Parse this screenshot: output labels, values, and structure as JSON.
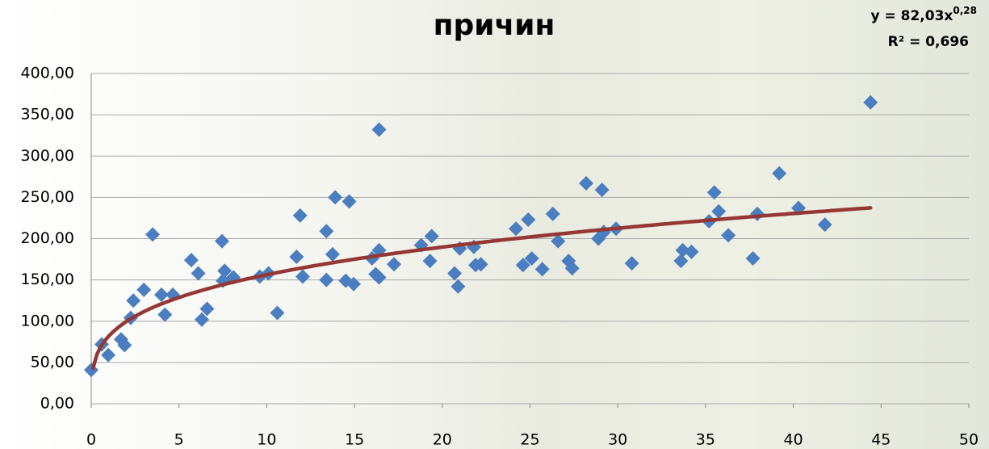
{
  "chart_data": {
    "type": "scatter",
    "title": "причин",
    "xlim": [
      0,
      50
    ],
    "xticks": [
      0,
      5,
      10,
      15,
      20,
      25,
      30,
      35,
      40,
      45,
      50
    ],
    "ylim": [
      0,
      400
    ],
    "yticks": [
      {
        "value": 0,
        "label": "0,00"
      },
      {
        "value": 50,
        "label": "50,00"
      },
      {
        "value": 100,
        "label": "100,00"
      },
      {
        "value": 150,
        "label": "150,00"
      },
      {
        "value": 200,
        "label": "200,00"
      },
      {
        "value": 250,
        "label": "250,00"
      },
      {
        "value": 300,
        "label": "300,00"
      },
      {
        "value": 350,
        "label": "350,00"
      },
      {
        "value": 400,
        "label": "400,00"
      }
    ],
    "grid": true,
    "series": [
      {
        "color": "#4a7ec0",
        "x": [
          0.0,
          0.6,
          0.97,
          1.7,
          1.9,
          2.25,
          2.4,
          3.0,
          3.5,
          4.0,
          4.2,
          4.65,
          5.7,
          6.1,
          6.3,
          6.6,
          7.45,
          7.6,
          7.5,
          8.1,
          9.6,
          10.1,
          10.6,
          11.7,
          11.9,
          12.05,
          13.4,
          13.4,
          13.75,
          13.9,
          14.5,
          14.7,
          14.95,
          16.0,
          16.2,
          16.4,
          16.4,
          16.4,
          17.25,
          18.8,
          19.4,
          19.3,
          20.7,
          20.9,
          21.0,
          21.8,
          21.9,
          22.2,
          24.2,
          24.6,
          24.9,
          25.1,
          25.7,
          26.3,
          26.6,
          27.2,
          27.4,
          28.2,
          28.9,
          29.1,
          29.2,
          29.9,
          30.8,
          33.6,
          33.7,
          34.2,
          35.2,
          35.5,
          35.75,
          36.3,
          37.7,
          37.95,
          39.2,
          40.3,
          41.8,
          44.4
        ],
        "values": [
          41,
          72,
          59,
          78,
          71,
          104,
          125,
          138,
          205,
          132,
          108,
          132,
          174,
          158,
          102,
          115,
          197,
          161,
          149,
          153,
          154,
          158,
          110,
          178,
          228,
          154,
          209,
          150,
          181,
          250,
          149,
          245,
          145,
          176,
          157,
          332,
          186,
          153,
          169,
          192,
          203,
          173,
          158,
          142,
          188,
          190,
          168,
          169,
          212,
          168,
          223,
          176,
          163,
          230,
          197,
          173,
          164,
          267,
          200,
          259,
          208,
          212,
          170,
          173,
          186,
          184,
          221,
          256,
          233,
          204,
          176,
          230,
          279,
          237,
          217,
          365
        ]
      }
    ],
    "trendline": {
      "color": "#953735",
      "coefficient": 82.03,
      "exponent": 0.28,
      "label": "y = 82,03x",
      "exponent_label": "0,28",
      "r_squared_label": "R² = 0,696"
    }
  }
}
